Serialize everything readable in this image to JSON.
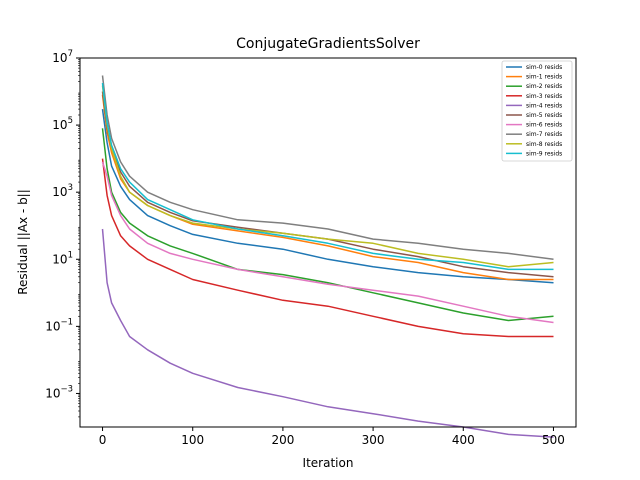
{
  "chart_data": {
    "type": "line",
    "title": "ConjugateGradientsSolver",
    "xlabel": "Iteration",
    "ylabel": "Residual ||Ax - b||",
    "yscale": "log",
    "xlim": [
      -25,
      525
    ],
    "ylim": [
      0.0001,
      10000000
    ],
    "xticks": [
      0,
      100,
      200,
      300,
      400,
      500
    ],
    "xtick_labels": [
      "0",
      "100",
      "200",
      "300",
      "400",
      "500"
    ],
    "yticks": [
      0.001,
      0.1,
      10,
      1000,
      100000,
      10000000
    ],
    "ytick_labels": [
      {
        "base": "10",
        "exp": "−3"
      },
      {
        "base": "10",
        "exp": "−1"
      },
      {
        "base": "10",
        "exp": "1"
      },
      {
        "base": "10",
        "exp": "3"
      },
      {
        "base": "10",
        "exp": "5"
      },
      {
        "base": "10",
        "exp": "7"
      }
    ],
    "grid": false,
    "legend_position": "top-right",
    "x": [
      0,
      5,
      10,
      20,
      30,
      50,
      75,
      100,
      150,
      200,
      250,
      300,
      350,
      400,
      450,
      500
    ],
    "series": [
      {
        "name": "sim-0 resids",
        "color": "#1f77b4",
        "values": [
          300000,
          30000,
          6000,
          1500,
          600,
          200,
          100,
          55,
          30,
          20,
          10,
          6,
          4,
          3,
          2.5,
          2
        ]
      },
      {
        "name": "sim-1 resids",
        "color": "#ff7f0e",
        "values": [
          800000,
          60000,
          15000,
          2500,
          1000,
          400,
          200,
          110,
          70,
          45,
          25,
          12,
          8,
          4,
          2.5,
          2.5
        ]
      },
      {
        "name": "sim-2 resids",
        "color": "#2ca02c",
        "values": [
          80000,
          5000,
          1000,
          250,
          120,
          50,
          25,
          15,
          5,
          3.5,
          2,
          1,
          0.5,
          0.25,
          0.15,
          0.2
        ]
      },
      {
        "name": "sim-3 resids",
        "color": "#d62728",
        "values": [
          10000,
          800,
          200,
          50,
          25,
          10,
          5,
          2.5,
          1.2,
          0.6,
          0.4,
          0.2,
          0.1,
          0.06,
          0.05,
          0.05
        ]
      },
      {
        "name": "sim-4 resids",
        "color": "#9467bd",
        "values": [
          80,
          2,
          0.5,
          0.15,
          0.05,
          0.02,
          0.008,
          0.004,
          0.0015,
          0.0008,
          0.0004,
          0.00025,
          0.00015,
          0.0001,
          6e-05,
          5e-05
        ]
      },
      {
        "name": "sim-5 resids",
        "color": "#8c564b",
        "values": [
          1000000,
          80000,
          20000,
          4000,
          1500,
          500,
          250,
          140,
          90,
          60,
          40,
          20,
          12,
          6,
          4,
          3
        ]
      },
      {
        "name": "sim-6 resids",
        "color": "#e377c2",
        "values": [
          8000,
          3000,
          800,
          200,
          80,
          30,
          15,
          10,
          5,
          3,
          1.8,
          1.2,
          0.8,
          0.4,
          0.2,
          0.13
        ]
      },
      {
        "name": "sim-7 resids",
        "color": "#7f7f7f",
        "values": [
          3000000,
          200000,
          40000,
          8000,
          3000,
          1000,
          500,
          300,
          150,
          120,
          80,
          40,
          30,
          20,
          15,
          10
        ]
      },
      {
        "name": "sim-8 resids",
        "color": "#bcbd22",
        "values": [
          1500000,
          100000,
          20000,
          3000,
          1000,
          400,
          200,
          120,
          80,
          60,
          40,
          30,
          15,
          10,
          6,
          8
        ]
      },
      {
        "name": "sim-9 resids",
        "color": "#17becf",
        "values": [
          1800000,
          120000,
          25000,
          5000,
          2000,
          600,
          300,
          150,
          80,
          50,
          30,
          15,
          10,
          8,
          5,
          5
        ]
      }
    ]
  }
}
